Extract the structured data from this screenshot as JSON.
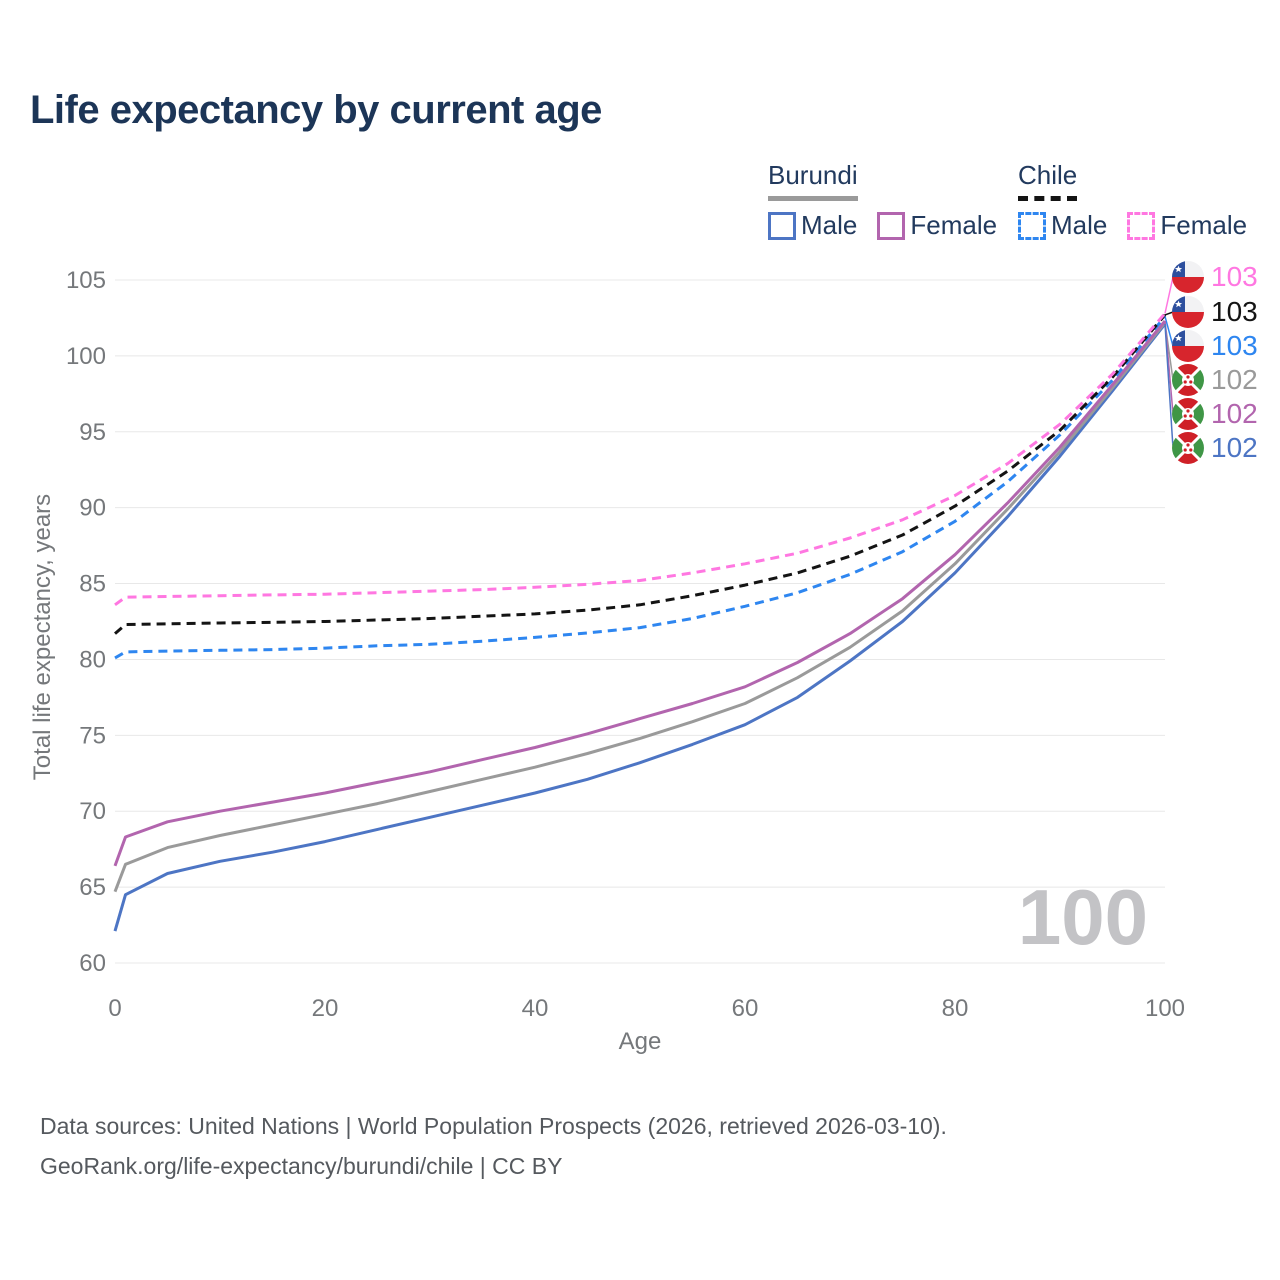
{
  "header": {
    "title": "Life expectancy by current age"
  },
  "legend": {
    "groups": [
      {
        "country": "Burundi",
        "line_style": "solid",
        "underline_color": "#9a9a9a",
        "items": [
          {
            "label": "Male",
            "color": "#4d75c4"
          },
          {
            "label": "Female",
            "color": "#b265ae"
          }
        ]
      },
      {
        "country": "Chile",
        "line_style": "dashed",
        "underline_color": "#141414",
        "items": [
          {
            "label": "Male",
            "color": "#2e86f0"
          },
          {
            "label": "Female",
            "color": "#ff77e1"
          }
        ]
      }
    ]
  },
  "axes": {
    "x_title": "Age",
    "y_title": "Total life expectancy, years"
  },
  "watermark": {
    "value": "100"
  },
  "footer": {
    "line1": "Data sources: United Nations | World Population Prospects (2026, retrieved 2026-03-10).",
    "line2": "GeoRank.org/life-expectancy/burundi/chile | CC BY"
  },
  "chart_data": {
    "type": "line",
    "title": "Life expectancy by current age",
    "xlabel": "Age",
    "ylabel": "Total life expectancy, years",
    "xlim": [
      0,
      100
    ],
    "ylim": [
      60,
      105
    ],
    "xticks": [
      0,
      20,
      40,
      60,
      80,
      100
    ],
    "yticks": [
      60,
      65,
      70,
      75,
      80,
      85,
      90,
      95,
      100,
      105
    ],
    "grid": "horizontal",
    "gridline_color": "#e8e8e8",
    "tick_label_color": "#75787b",
    "x": [
      0,
      1,
      5,
      10,
      15,
      20,
      25,
      30,
      35,
      40,
      45,
      50,
      55,
      60,
      65,
      70,
      75,
      80,
      85,
      90,
      95,
      100
    ],
    "series": [
      {
        "name": "Chile Female",
        "country": "Chile",
        "sex": "Female",
        "style": "dashed",
        "color": "#ff77e1",
        "values": [
          83.6,
          84.1,
          84.15,
          84.2,
          84.25,
          84.3,
          84.4,
          84.5,
          84.6,
          84.75,
          84.95,
          85.2,
          85.7,
          86.3,
          87.0,
          88.0,
          89.2,
          90.8,
          92.9,
          95.5,
          98.8,
          102.8
        ]
      },
      {
        "name": "Chile Both sexes",
        "country": "Chile",
        "sex": "Both",
        "style": "dashed",
        "color": "#141414",
        "values": [
          81.7,
          82.3,
          82.35,
          82.4,
          82.45,
          82.5,
          82.6,
          82.7,
          82.85,
          83.0,
          83.25,
          83.6,
          84.2,
          84.9,
          85.7,
          86.8,
          88.2,
          90.1,
          92.4,
          95.1,
          98.6,
          102.7
        ]
      },
      {
        "name": "Chile Male",
        "country": "Chile",
        "sex": "Male",
        "style": "dashed",
        "color": "#2e86f0",
        "values": [
          80.1,
          80.5,
          80.55,
          80.6,
          80.65,
          80.75,
          80.9,
          81.0,
          81.2,
          81.45,
          81.75,
          82.1,
          82.7,
          83.5,
          84.4,
          85.6,
          87.1,
          89.1,
          91.7,
          94.8,
          98.4,
          102.6
        ]
      },
      {
        "name": "Burundi Both sexes",
        "country": "Burundi",
        "sex": "Both",
        "style": "solid",
        "color": "#9a9a9a",
        "values": [
          64.7,
          66.5,
          67.6,
          68.4,
          69.1,
          69.8,
          70.5,
          71.3,
          72.1,
          72.9,
          73.8,
          74.8,
          75.9,
          77.1,
          78.8,
          80.8,
          83.2,
          86.3,
          89.9,
          93.7,
          97.9,
          102.2
        ]
      },
      {
        "name": "Burundi Female",
        "country": "Burundi",
        "sex": "Female",
        "style": "solid",
        "color": "#b265ae",
        "values": [
          66.4,
          68.3,
          69.3,
          70.0,
          70.6,
          71.2,
          71.9,
          72.6,
          73.4,
          74.2,
          75.1,
          76.1,
          77.1,
          78.2,
          79.8,
          81.7,
          84.0,
          86.9,
          90.3,
          94.0,
          98.1,
          102.3
        ]
      },
      {
        "name": "Burundi Male",
        "country": "Burundi",
        "sex": "Male",
        "style": "solid",
        "color": "#4d75c4",
        "values": [
          62.1,
          64.5,
          65.9,
          66.7,
          67.3,
          68.0,
          68.8,
          69.6,
          70.4,
          71.2,
          72.1,
          73.2,
          74.4,
          75.7,
          77.5,
          79.9,
          82.5,
          85.7,
          89.4,
          93.4,
          97.7,
          102.1
        ]
      }
    ],
    "end_labels": [
      {
        "value": "103",
        "color": "#ff77e1",
        "flag": "chile",
        "series": "Chile Female"
      },
      {
        "value": "103",
        "color": "#141414",
        "flag": "chile",
        "series": "Chile Both sexes"
      },
      {
        "value": "103",
        "color": "#2e86f0",
        "flag": "chile",
        "series": "Chile Male"
      },
      {
        "value": "102",
        "color": "#9a9a9a",
        "flag": "burundi",
        "series": "Burundi Both sexes"
      },
      {
        "value": "102",
        "color": "#b265ae",
        "flag": "burundi",
        "series": "Burundi Female"
      },
      {
        "value": "102",
        "color": "#4d75c4",
        "flag": "burundi",
        "series": "Burundi Male"
      }
    ],
    "legend_position": "top-right"
  }
}
